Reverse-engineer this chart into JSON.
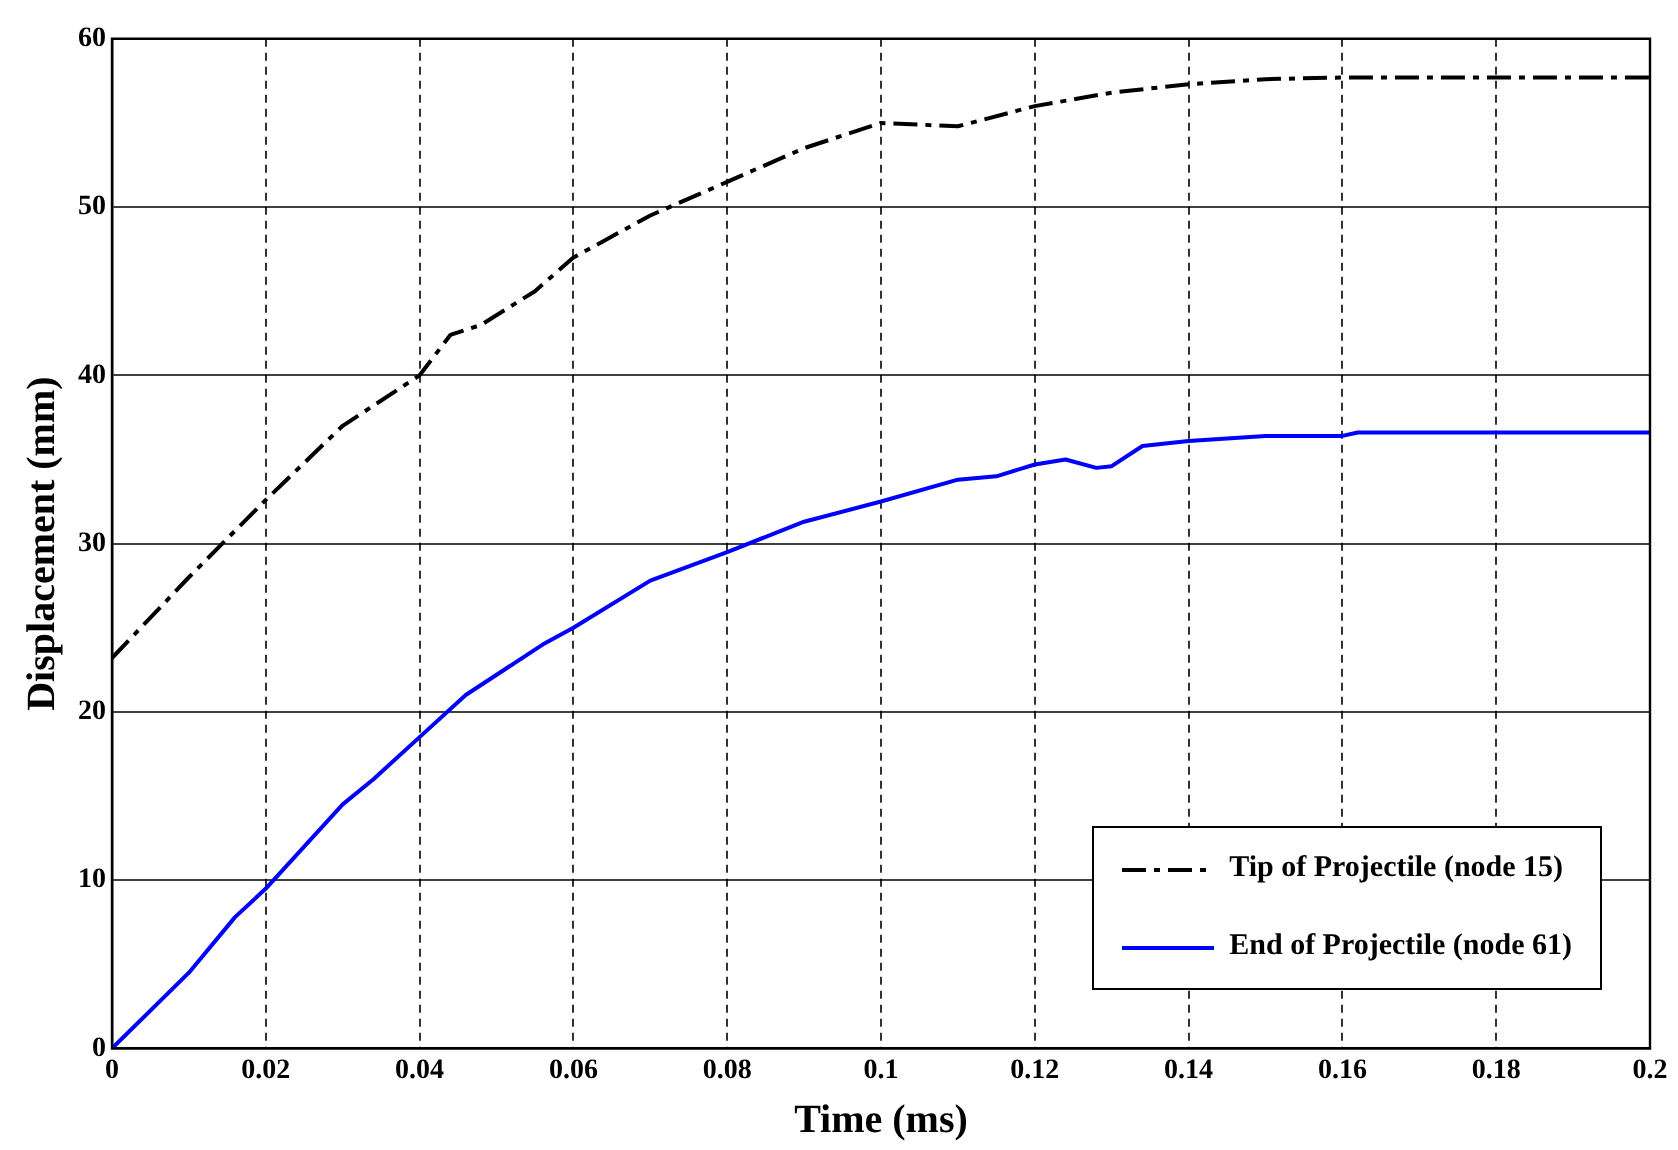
{
  "chart_data": {
    "type": "line",
    "xlabel": "Time (ms)",
    "ylabel": "Displacement (mm)",
    "xlim": [
      0,
      0.2
    ],
    "xticks": [
      0,
      0.02,
      0.04,
      0.06,
      0.08,
      0.1,
      0.12,
      0.14,
      0.16,
      0.18,
      {
        "value": 0.2,
        "label": "0.2"
      }
    ],
    "ylim": [
      0,
      60
    ],
    "yticks": [
      0,
      10,
      20,
      30,
      40,
      50,
      60
    ],
    "grid": true,
    "legend": "bottom right",
    "marker": "none",
    "series": [
      {
        "name": "Tip of Projectile (node 15)",
        "color": "#000000",
        "line_style": "dashed",
        "x": [
          0,
          0.01,
          0.02,
          0.03,
          0.04,
          0.044,
          0.048,
          0.055,
          0.06,
          0.07,
          0.08,
          0.09,
          0.1,
          0.11,
          0.12,
          0.13,
          0.14,
          0.15,
          0.16,
          0.2
        ],
        "values": [
          23.2,
          28,
          32.6,
          37,
          40,
          42.4,
          43,
          45,
          47,
          49.5,
          51.5,
          53.5,
          55,
          54.8,
          56,
          56.8,
          57.3,
          57.6,
          57.7,
          57.7
        ]
      },
      {
        "name": "End of Projectile (node 61)",
        "color": "#0000ff",
        "line_style": "solid",
        "x": [
          0,
          0.01,
          0.016,
          0.02,
          0.03,
          0.034,
          0.04,
          0.046,
          0.056,
          0.06,
          0.07,
          0.08,
          0.09,
          0.1,
          0.11,
          0.115,
          0.12,
          0.124,
          0.128,
          0.13,
          0.134,
          0.14,
          0.15,
          0.16,
          0.162,
          0.2
        ],
        "values": [
          0,
          4.5,
          7.8,
          9.5,
          14.5,
          16,
          18.5,
          21,
          24,
          25,
          27.8,
          29.5,
          31.3,
          32.5,
          33.8,
          34,
          34.7,
          35,
          34.5,
          34.6,
          35.8,
          36.1,
          36.4,
          36.4,
          36.6,
          36.6
        ]
      }
    ]
  }
}
